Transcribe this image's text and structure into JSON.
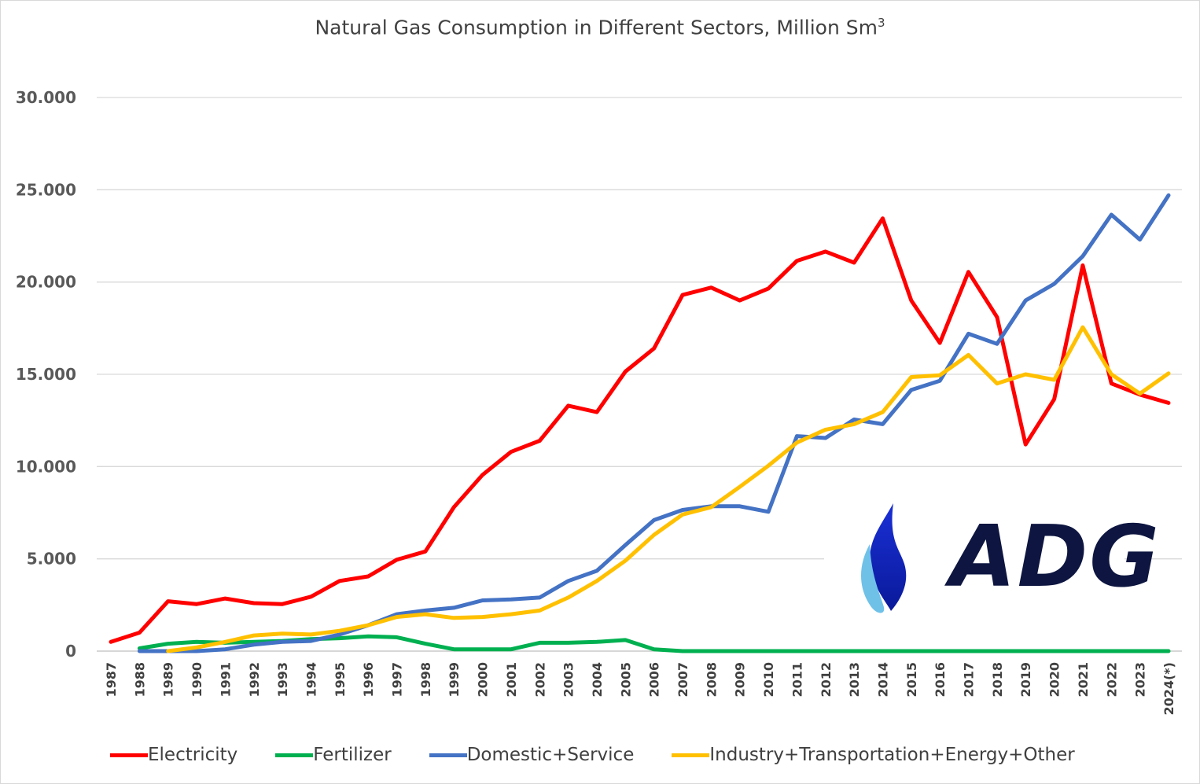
{
  "chart_data": {
    "type": "line",
    "title": "Natural Gas Consumption in Different Sectors, Million Sm",
    "title_superscript": "3",
    "xlabel": "",
    "ylabel": "",
    "ylim": [
      0,
      30000
    ],
    "yticks": [
      0,
      5000,
      10000,
      15000,
      20000,
      25000,
      30000
    ],
    "ytick_labels": [
      "0",
      "5.000",
      "10.000",
      "15.000",
      "20.000",
      "25.000",
      "30.000"
    ],
    "grid": "horizontal",
    "legend_position": "bottom",
    "categories": [
      "1987",
      "1988",
      "1989",
      "1990",
      "1991",
      "1992",
      "1993",
      "1994",
      "1995",
      "1996",
      "1997",
      "1998",
      "1999",
      "2000",
      "2001",
      "2002",
      "2003",
      "2004",
      "2005",
      "2006",
      "2007",
      "2008",
      "2009",
      "2010",
      "2011",
      "2012",
      "2013",
      "2014",
      "2015",
      "2016",
      "2017",
      "2018",
      "2019",
      "2020",
      "2021",
      "2022",
      "2023",
      "2024(*)"
    ],
    "series": [
      {
        "name": "Electricity",
        "color": "#ff0000",
        "values": [
          500,
          1000,
          2700,
          2550,
          2850,
          2600,
          2550,
          2950,
          3800,
          4050,
          4950,
          5400,
          7800,
          9550,
          10800,
          11400,
          13300,
          12950,
          15150,
          16400,
          19300,
          19700,
          19000,
          19650,
          21150,
          21650,
          21050,
          23450,
          19000,
          16700,
          20550,
          18100,
          11200,
          13650,
          20900,
          14500,
          13900,
          13450
        ]
      },
      {
        "name": "Fertilizer",
        "color": "#00b050",
        "values": [
          null,
          150,
          400,
          500,
          450,
          500,
          550,
          650,
          700,
          800,
          750,
          400,
          100,
          100,
          100,
          450,
          450,
          500,
          600,
          100,
          0,
          0,
          0,
          0,
          0,
          0,
          0,
          0,
          0,
          0,
          0,
          0,
          0,
          0,
          0,
          0,
          0,
          0
        ]
      },
      {
        "name": "Domestic+Service",
        "color": "#4472c4",
        "values": [
          null,
          0,
          0,
          0,
          100,
          350,
          500,
          550,
          900,
          1400,
          2000,
          2200,
          2350,
          2750,
          2800,
          2900,
          3800,
          4350,
          5750,
          7100,
          7650,
          7850,
          7850,
          7550,
          11650,
          11550,
          12550,
          12300,
          14150,
          14650,
          17200,
          16650,
          19000,
          19900,
          21400,
          23650,
          22300,
          24700
        ]
      },
      {
        "name": "Industry+Transportation+Energy+Other",
        "color": "#ffc000",
        "values": [
          null,
          null,
          0,
          200,
          500,
          850,
          950,
          900,
          1100,
          1400,
          1850,
          2000,
          1800,
          1850,
          2000,
          2200,
          2900,
          3800,
          4900,
          6300,
          7400,
          7800,
          8900,
          10050,
          11300,
          12000,
          12300,
          12950,
          14850,
          14950,
          16050,
          14500,
          15000,
          14700,
          17550,
          15000,
          13950,
          15050
        ]
      }
    ]
  },
  "logo": {
    "text": "ADG"
  }
}
